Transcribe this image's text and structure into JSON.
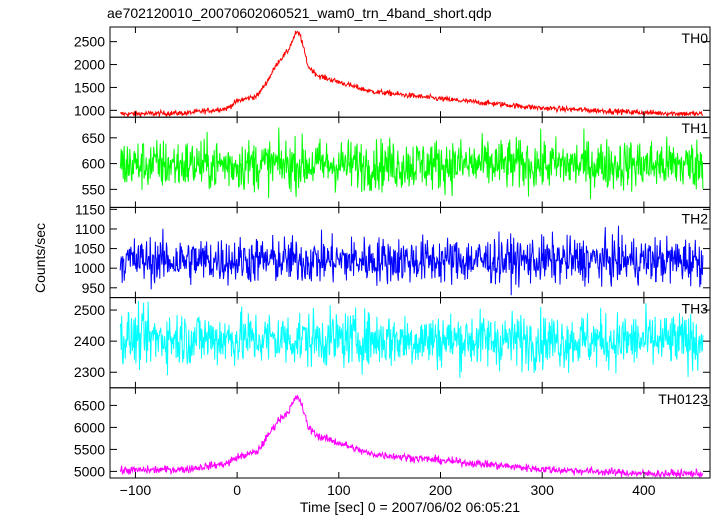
{
  "chart_data": {
    "type": "line",
    "title": "ae702120010_20070602060521_wam0_trn_4band_short.qdp",
    "xlabel": "Time [sec] 0 = 2007/06/02 06:05:21",
    "ylabel": "Counts/sec",
    "xlim": [
      -125,
      465
    ],
    "x_ticks": [
      {
        "value": -100,
        "label": "−100"
      },
      {
        "value": 0,
        "label": "0"
      },
      {
        "value": 100,
        "label": "100"
      },
      {
        "value": 200,
        "label": "200"
      },
      {
        "value": 300,
        "label": "300"
      },
      {
        "value": 400,
        "label": "400"
      }
    ],
    "x_range": [
      -115,
      458
    ],
    "panels": [
      {
        "label": "TH0",
        "color": "#ff0000",
        "ylim": [
          850,
          2820
        ],
        "y_ticks": [
          {
            "value": 1000,
            "label": "1000"
          },
          {
            "value": 1500,
            "label": "1500"
          },
          {
            "value": 2000,
            "label": "2000"
          },
          {
            "value": 2500,
            "label": "2500"
          }
        ],
        "noise": 30,
        "profile": [
          [
            -115,
            920
          ],
          [
            -50,
            940
          ],
          [
            -10,
            1040
          ],
          [
            0,
            1200
          ],
          [
            20,
            1320
          ],
          [
            30,
            1650
          ],
          [
            40,
            2050
          ],
          [
            50,
            2300
          ],
          [
            58,
            2700
          ],
          [
            62,
            2650
          ],
          [
            70,
            1950
          ],
          [
            80,
            1750
          ],
          [
            100,
            1620
          ],
          [
            130,
            1420
          ],
          [
            200,
            1250
          ],
          [
            300,
            1050
          ],
          [
            400,
            950
          ],
          [
            458,
            920
          ]
        ]
      },
      {
        "label": "TH1",
        "color": "#00ff00",
        "ylim": [
          515,
          690
        ],
        "y_ticks": [
          {
            "value": 550,
            "label": "550"
          },
          {
            "value": 600,
            "label": "600"
          },
          {
            "value": 650,
            "label": "650"
          }
        ],
        "noise": 25,
        "profile": [
          [
            -115,
            598
          ],
          [
            458,
            598
          ]
        ]
      },
      {
        "label": "TH2",
        "color": "#0000ff",
        "ylim": [
          925,
          1155
        ],
        "y_ticks": [
          {
            "value": 950,
            "label": "950"
          },
          {
            "value": 1000,
            "label": "1000"
          },
          {
            "value": 1050,
            "label": "1050"
          },
          {
            "value": 1100,
            "label": "1100"
          },
          {
            "value": 1150,
            "label": "1150"
          }
        ],
        "noise": 30,
        "profile": [
          [
            -115,
            1020
          ],
          [
            458,
            1020
          ]
        ]
      },
      {
        "label": "TH3",
        "color": "#00ffff",
        "ylim": [
          2250,
          2540
        ],
        "y_ticks": [
          {
            "value": 2300,
            "label": "2300"
          },
          {
            "value": 2400,
            "label": "2400"
          },
          {
            "value": 2500,
            "label": "2500"
          }
        ],
        "noise": 45,
        "profile": [
          [
            -115,
            2410
          ],
          [
            458,
            2400
          ]
        ]
      },
      {
        "label": "TH0123",
        "color": "#ff00ff",
        "ylim": [
          4850,
          6900
        ],
        "y_ticks": [
          {
            "value": 5000,
            "label": "5000"
          },
          {
            "value": 5500,
            "label": "5500"
          },
          {
            "value": 6000,
            "label": "6000"
          },
          {
            "value": 6500,
            "label": "6500"
          }
        ],
        "noise": 45,
        "profile": [
          [
            -115,
            5020
          ],
          [
            -50,
            5050
          ],
          [
            -10,
            5180
          ],
          [
            0,
            5320
          ],
          [
            20,
            5450
          ],
          [
            30,
            5800
          ],
          [
            40,
            6150
          ],
          [
            50,
            6350
          ],
          [
            58,
            6680
          ],
          [
            62,
            6620
          ],
          [
            70,
            6000
          ],
          [
            80,
            5800
          ],
          [
            100,
            5650
          ],
          [
            130,
            5400
          ],
          [
            200,
            5250
          ],
          [
            300,
            5050
          ],
          [
            400,
            4950
          ],
          [
            458,
            4950
          ]
        ]
      }
    ]
  }
}
